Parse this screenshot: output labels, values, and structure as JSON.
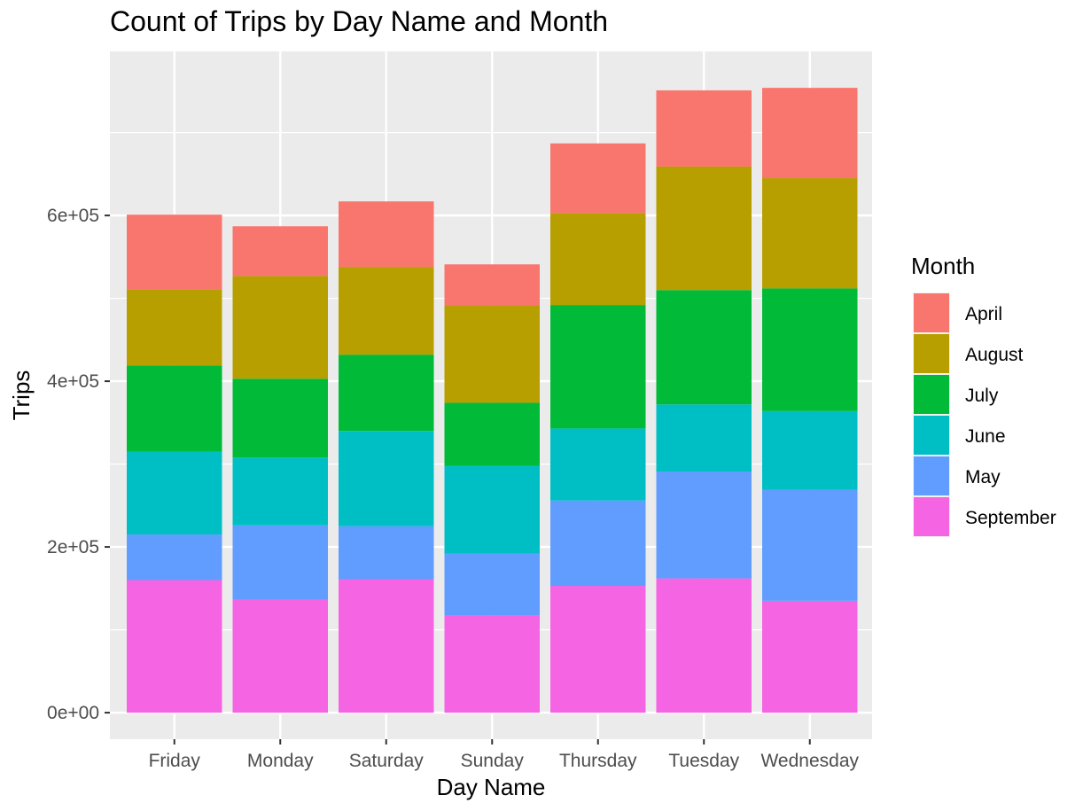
{
  "chart_data": {
    "type": "bar",
    "stacked": true,
    "title": "Count of Trips by Day Name and Month",
    "xlabel": "Day Name",
    "ylabel": "Trips",
    "categories": [
      "Friday",
      "Monday",
      "Saturday",
      "Sunday",
      "Thursday",
      "Tuesday",
      "Wednesday"
    ],
    "y_ticks": [
      0,
      200000,
      400000,
      600000
    ],
    "y_tick_labels": [
      "0e+00",
      "2e+05",
      "4e+05",
      "6e+05"
    ],
    "ylim": [
      -32000,
      798000
    ],
    "grid": true,
    "legend": {
      "title": "Month",
      "position": "right"
    },
    "series": [
      {
        "name": "September",
        "color": "#F564E3",
        "values": [
          160000,
          137000,
          161000,
          117000,
          153000,
          162000,
          135000
        ]
      },
      {
        "name": "May",
        "color": "#619CFF",
        "values": [
          55000,
          89000,
          64000,
          75000,
          103000,
          129000,
          134000
        ]
      },
      {
        "name": "June",
        "color": "#00BFC4",
        "values": [
          100000,
          82000,
          115000,
          106000,
          87000,
          81000,
          95000
        ]
      },
      {
        "name": "July",
        "color": "#00BA38",
        "values": [
          104000,
          95000,
          92000,
          76000,
          149000,
          138000,
          148000
        ]
      },
      {
        "name": "August",
        "color": "#B79F00",
        "values": [
          92000,
          124000,
          106000,
          117000,
          111000,
          149000,
          133000
        ]
      },
      {
        "name": "April",
        "color": "#F8766D",
        "values": [
          90000,
          60000,
          79000,
          50000,
          84000,
          92000,
          109000
        ]
      }
    ],
    "legend_order": [
      "April",
      "August",
      "July",
      "June",
      "May",
      "September"
    ]
  }
}
